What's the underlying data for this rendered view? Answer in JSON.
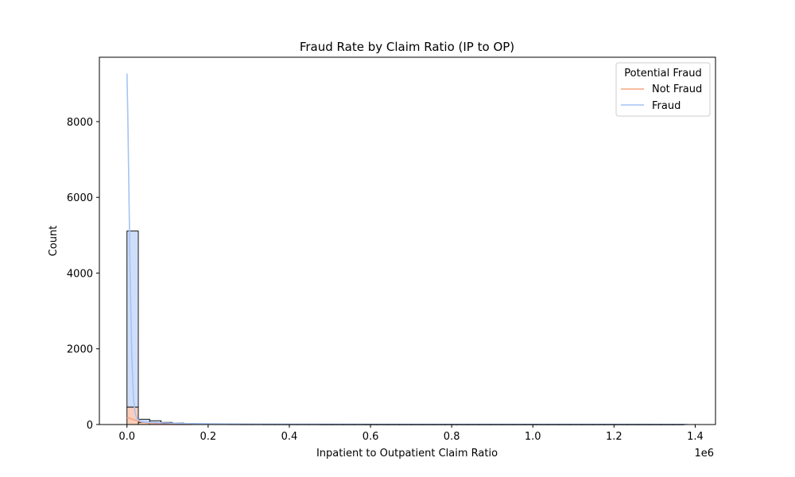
{
  "chart_data": {
    "type": "histogram",
    "title": "Fraud Rate by Claim Ratio (IP to OP)",
    "xlabel": "Inpatient to Outpatient Claim Ratio",
    "ylabel": "Count",
    "x_offset_label": "1e6",
    "xlim": [
      -68000,
      1450000
    ],
    "ylim": [
      0,
      9700
    ],
    "x_ticks": [
      0,
      200000,
      400000,
      600000,
      800000,
      1000000,
      1200000,
      1400000
    ],
    "x_tick_labels": [
      "0.0",
      "0.2",
      "0.4",
      "0.6",
      "0.8",
      "1.0",
      "1.2",
      "1.4"
    ],
    "y_ticks": [
      0,
      2000,
      4000,
      6000,
      8000
    ],
    "y_tick_labels": [
      "0",
      "2000",
      "4000",
      "6000",
      "8000"
    ],
    "grid": false,
    "legend": {
      "title": "Potential Fraud",
      "placement": "top-right",
      "entries": [
        "Not Fraud",
        "Fraud"
      ]
    },
    "bin_edges": [
      0,
      28000,
      56000,
      84000,
      112000,
      140000,
      168000,
      196000,
      224000,
      252000,
      280000,
      308000,
      336000,
      364000,
      392000,
      420000,
      448000,
      476000,
      504000,
      532000,
      560000,
      588000,
      616000,
      644000,
      672000,
      700000,
      728000,
      756000,
      784000,
      812000,
      840000,
      868000,
      896000,
      924000,
      952000,
      980000,
      1008000,
      1036000,
      1064000,
      1092000,
      1120000,
      1148000,
      1176000,
      1204000,
      1232000,
      1260000,
      1288000,
      1316000,
      1344000,
      1372000
    ],
    "series": [
      {
        "name": "Not Fraud",
        "color": "#f4a582",
        "counts": [
          460,
          60,
          40,
          22,
          15,
          10,
          8,
          6,
          5,
          4,
          3,
          3,
          2,
          2,
          2,
          2,
          2,
          1,
          1,
          1,
          1,
          1,
          1,
          1,
          1,
          1,
          1,
          1,
          1,
          1,
          1,
          1,
          1,
          1,
          1,
          1,
          1,
          1,
          1,
          1,
          1,
          1,
          1,
          1,
          1,
          1,
          1,
          1,
          1
        ],
        "kde_x": [
          0,
          5000,
          12000,
          25000,
          40000,
          55000,
          70000,
          90000,
          120000,
          160000
        ],
        "kde_y": [
          180,
          175,
          140,
          100,
          60,
          35,
          20,
          10,
          4,
          0
        ]
      },
      {
        "name": "Fraud",
        "color": "#a6c3f5",
        "counts": [
          4650,
          80,
          60,
          35,
          25,
          18,
          14,
          11,
          9,
          8,
          7,
          6,
          5,
          5,
          4,
          4,
          4,
          3,
          3,
          3,
          3,
          2,
          2,
          2,
          2,
          2,
          2,
          2,
          2,
          2,
          2,
          2,
          2,
          2,
          2,
          2,
          2,
          2,
          2,
          2,
          2,
          2,
          2,
          2,
          2,
          2,
          2,
          2,
          2
        ],
        "kde_x": [
          0,
          2000,
          5000,
          8000,
          12000,
          16000,
          20000,
          25000,
          35000,
          50000,
          70000,
          100000,
          150000,
          250000,
          400000,
          700000,
          1000000,
          1380000
        ],
        "kde_y": [
          9270,
          8200,
          6000,
          3800,
          1800,
          700,
          300,
          150,
          80,
          60,
          50,
          40,
          25,
          15,
          10,
          8,
          6,
          5
        ]
      }
    ]
  }
}
